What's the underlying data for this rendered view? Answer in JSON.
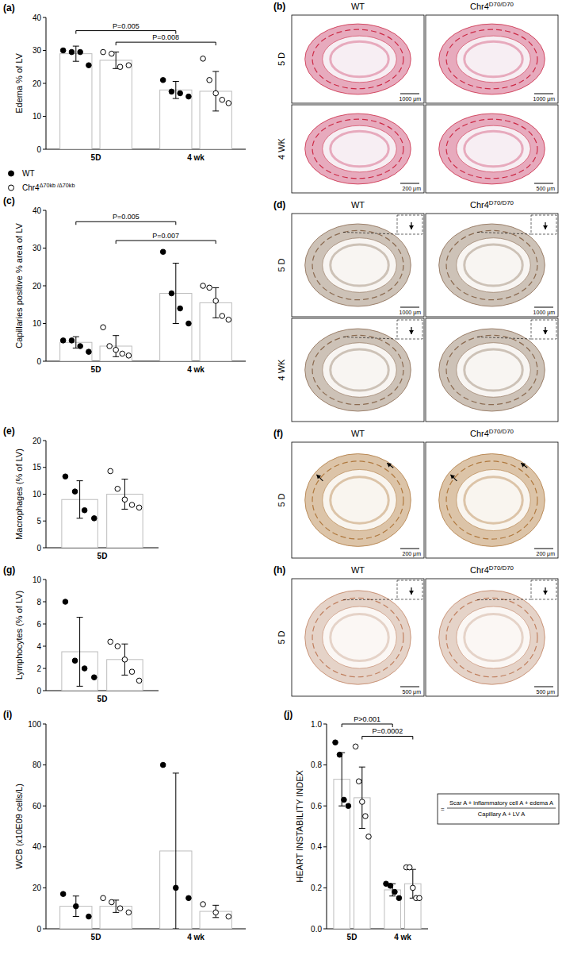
{
  "chart_data": [
    {
      "type": "bar",
      "label": "(a)",
      "y_label": "Edema % of LV",
      "categories": [
        "5D",
        "4 wk"
      ],
      "ylim": [
        0,
        40
      ],
      "yticks": [
        0,
        10,
        20,
        30,
        40
      ],
      "legend": "bottom-left",
      "series": [
        {
          "name": "WT",
          "color": "#000000",
          "marker": "circle",
          "values": [
            29,
            18
          ],
          "errors": [
            2.3,
            2.6
          ],
          "points": [
            [
              30,
              29.5,
              29.5,
              25.5
            ],
            [
              21,
              17.5,
              17,
              16
            ]
          ]
        },
        {
          "name": "Chr4Δ70kb /Δ70kb",
          "color": "#000000",
          "marker": "open_circle",
          "values": [
            27,
            17.6
          ],
          "errors": [
            2.5,
            6
          ],
          "points": [
            [
              29.5,
              29,
              25,
              25.5
            ],
            [
              27.5,
              21,
              17,
              15,
              14
            ]
          ]
        }
      ],
      "annotations": [
        {
          "text": "P=0.005",
          "y": 36,
          "series": "WT"
        },
        {
          "text": "P=0.008",
          "y": 32.5,
          "series": "Chr4Δ70kb /Δ70kb"
        }
      ]
    },
    {
      "type": "bar",
      "label": "(c)",
      "y_label": "Capillaries positive % area of LV",
      "categories": [
        "5D",
        "4 wk"
      ],
      "ylim": [
        0,
        40
      ],
      "yticks": [
        0,
        10,
        20,
        30,
        40
      ],
      "series": [
        {
          "name": "WT",
          "color": "#000000",
          "marker": "circle",
          "values": [
            5,
            18
          ],
          "errors": [
            1.5,
            8
          ],
          "points": [
            [
              5.5,
              5.5,
              4,
              2.5
            ],
            [
              29,
              18,
              14,
              10
            ]
          ]
        },
        {
          "name": "Chr4Δ70kb /Δ70kb",
          "color": "#000000",
          "marker": "open_circle",
          "values": [
            4,
            15.5
          ],
          "errors": [
            2.8,
            4
          ],
          "points": [
            [
              9,
              4,
              3,
              2,
              1.5
            ],
            [
              20,
              19.5,
              16,
              12,
              11
            ]
          ]
        }
      ],
      "annotations": [
        {
          "text": "P=0.005",
          "y": 37,
          "series": "WT"
        },
        {
          "text": "P=0.007",
          "y": 32,
          "series": "Chr4Δ70kb /Δ70kb"
        }
      ]
    },
    {
      "type": "bar",
      "label": "(e)",
      "y_label": "Macrophages (% of LV)",
      "categories": [
        "5D"
      ],
      "ylim": [
        0,
        20
      ],
      "yticks": [
        0,
        5,
        10,
        15,
        20
      ],
      "series": [
        {
          "name": "WT",
          "color": "#000000",
          "marker": "circle",
          "values": [
            9
          ],
          "errors": [
            3.5
          ],
          "points": [
            [
              13.3,
              10.5,
              7,
              5.5
            ]
          ]
        },
        {
          "name": "Chr4Δ70kb /Δ70kb",
          "color": "#000000",
          "marker": "open_circle",
          "values": [
            10
          ],
          "errors": [
            2.8
          ],
          "points": [
            [
              14.3,
              11,
              9,
              8,
              7.5
            ]
          ]
        }
      ]
    },
    {
      "type": "bar",
      "label": "(g)",
      "y_label": "Lymphocytes (% of LV)",
      "categories": [
        "5D"
      ],
      "ylim": [
        0,
        10
      ],
      "yticks": [
        0,
        2,
        4,
        6,
        8,
        10
      ],
      "series": [
        {
          "name": "WT",
          "color": "#000000",
          "marker": "circle",
          "values": [
            3.5
          ],
          "errors": [
            3.1
          ],
          "points": [
            [
              8,
              2.7,
              2,
              1.2
            ]
          ]
        },
        {
          "name": "Chr4Δ70kb /Δ70kb",
          "color": "#000000",
          "marker": "open_circle",
          "values": [
            2.8
          ],
          "errors": [
            1.4
          ],
          "points": [
            [
              4.4,
              4,
              2.8,
              1.7,
              0.9
            ]
          ]
        }
      ]
    },
    {
      "type": "bar",
      "label": "(i)",
      "y_label": "WCB (x10E09 cells/L)",
      "categories": [
        "5D",
        "4 wk"
      ],
      "ylim": [
        0,
        100
      ],
      "yticks": [
        0,
        20,
        40,
        60,
        80,
        100
      ],
      "series": [
        {
          "name": "WT",
          "color": "#000000",
          "marker": "circle",
          "values": [
            11,
            38
          ],
          "errors": [
            5,
            38
          ],
          "points": [
            [
              17,
              11,
              6
            ],
            [
              80,
              20,
              15
            ]
          ]
        },
        {
          "name": "Chr4Δ70kb /Δ70kb",
          "color": "#000000",
          "marker": "open_circle",
          "values": [
            11,
            8.5
          ],
          "errors": [
            3,
            3
          ],
          "points": [
            [
              15,
              13,
              10,
              8
            ],
            [
              12,
              8,
              6
            ]
          ]
        }
      ]
    },
    {
      "type": "bar",
      "label": "(j)",
      "y_label": "HEART INSTABILITY INDEX",
      "categories": [
        "5D",
        "4 wk"
      ],
      "ylim": [
        0,
        1
      ],
      "yticks": [
        {
          "value": 0,
          "label": "0.0"
        },
        0.2,
        0.4,
        0.6,
        0.8,
        {
          "value": 1,
          "label": "1.0"
        }
      ],
      "series": [
        {
          "name": "WT",
          "color": "#000000",
          "marker": "circle",
          "values": [
            0.73,
            0.19
          ],
          "errors": [
            0.13,
            0.03
          ],
          "points": [
            [
              0.91,
              0.85,
              0.63,
              0.6
            ],
            [
              0.22,
              0.21,
              0.18,
              0.15
            ]
          ]
        },
        {
          "name": "Chr4Δ70kb /Δ70kb",
          "color": "#000000",
          "marker": "open_circle",
          "values": [
            0.64,
            0.22
          ],
          "errors": [
            0.15,
            0.07
          ],
          "points": [
            [
              0.89,
              0.72,
              0.62,
              0.55,
              0.45
            ],
            [
              0.3,
              0.3,
              0.2,
              0.15,
              0.15
            ]
          ]
        }
      ],
      "annotations": [
        {
          "text": "P>0.001",
          "y": 1.0,
          "series": "WT"
        },
        {
          "text": "P=0.0002",
          "y": 0.94,
          "series": "Chr4Δ70kb /Δ70kb"
        }
      ]
    }
  ],
  "formula": {
    "prefix": "=",
    "numerator": "Scar A + inflammatory cell A + edema A",
    "denominator": "Capillary A + LV A"
  },
  "image_panels": [
    {
      "label": "(b)",
      "columns": [
        "WT",
        {
          "base": "Chr4",
          "sup": "D70/D70"
        }
      ],
      "rows": [
        {
          "label": "5 D",
          "scale_bars": [
            "1000 μm",
            "1000 μm"
          ]
        },
        {
          "label": "4 WK",
          "scale_bars": [
            "200 μm",
            "500 μm"
          ]
        }
      ]
    },
    {
      "label": "(d)",
      "columns": [
        "WT",
        {
          "base": "Chr4",
          "sup": "D70/D70"
        }
      ],
      "rows": [
        {
          "label": "5 D",
          "scale_bars": [
            "1000 μm",
            "1000 μm"
          ]
        },
        {
          "label": "4 WK"
        }
      ]
    },
    {
      "label": "(f)",
      "columns": [
        "WT",
        {
          "base": "Chr4",
          "sup": "D70/D70"
        }
      ],
      "rows": [
        {
          "label": "5 D",
          "scale_bars": [
            "200 μm",
            "200 μm"
          ]
        }
      ]
    },
    {
      "label": "(h)",
      "columns": [
        "WT",
        {
          "base": "Chr4",
          "sup": "D70/D70"
        }
      ],
      "rows": [
        {
          "label": "5 D",
          "scale_bars": [
            "500 μm",
            "500 μm"
          ]
        }
      ]
    }
  ]
}
